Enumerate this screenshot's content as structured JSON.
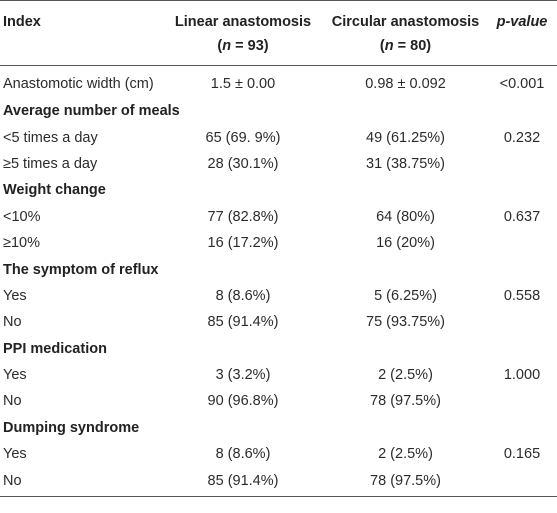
{
  "header": {
    "index": "Index",
    "linear": "Linear anastomosis",
    "linear_n": "(n = 93)",
    "circular": "Circular anastomosis",
    "circular_n": "(n = 80)",
    "pvalue": "p-value"
  },
  "rows": [
    {
      "type": "data",
      "label": "Anastomotic width (cm)",
      "linear": "1.5 ± 0.00",
      "circular": "0.98 ± 0.092",
      "p": "<0.001"
    },
    {
      "type": "group",
      "label": "Average number of meals"
    },
    {
      "type": "data",
      "label": "<5 times a day",
      "linear": "65 (69. 9%)",
      "circular": "49 (61.25%)",
      "p": "0.232"
    },
    {
      "type": "data",
      "label": "≥5 times a day",
      "linear": "28 (30.1%)",
      "circular": "31 (38.75%)",
      "p": ""
    },
    {
      "type": "group",
      "label": "Weight change"
    },
    {
      "type": "data",
      "label": "<10%",
      "linear": "77 (82.8%)",
      "circular": "64 (80%)",
      "p": "0.637"
    },
    {
      "type": "data",
      "label": "≥10%",
      "linear": "16 (17.2%)",
      "circular": "16 (20%)",
      "p": ""
    },
    {
      "type": "group",
      "label": "The symptom of reflux"
    },
    {
      "type": "data",
      "label": "Yes",
      "linear": "8 (8.6%)",
      "circular": "5 (6.25%)",
      "p": "0.558"
    },
    {
      "type": "data",
      "label": "No",
      "linear": "85 (91.4%)",
      "circular": "75 (93.75%)",
      "p": ""
    },
    {
      "type": "group",
      "label": "PPI medication"
    },
    {
      "type": "data",
      "label": "Yes",
      "linear": "3 (3.2%)",
      "circular": "2 (2.5%)",
      "p": "1.000"
    },
    {
      "type": "data",
      "label": "No",
      "linear": "90 (96.8%)",
      "circular": "78 (97.5%)",
      "p": ""
    },
    {
      "type": "group",
      "label": "Dumping syndrome"
    },
    {
      "type": "data",
      "label": "Yes",
      "linear": "8 (8.6%)",
      "circular": "2 (2.5%)",
      "p": "0.165"
    },
    {
      "type": "data",
      "label": "No",
      "linear": "85 (91.4%)",
      "circular": "78 (97.5%)",
      "p": ""
    }
  ]
}
